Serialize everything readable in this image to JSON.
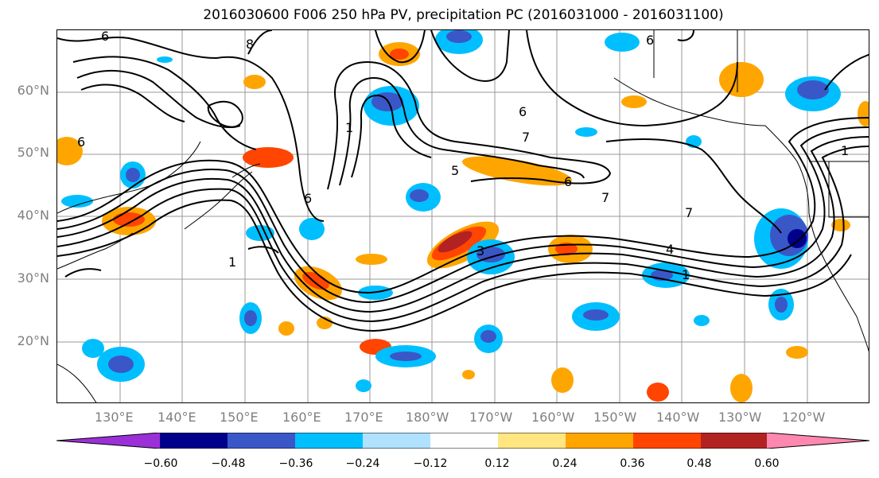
{
  "title": "2016030600 F006 250 hPa PV, precipitation PC (2016031000 - 2016031100)",
  "map": {
    "lat_labels": [
      {
        "label": "60°N",
        "lat": 60
      },
      {
        "label": "50°N",
        "lat": 50
      },
      {
        "label": "40°N",
        "lat": 40
      },
      {
        "label": "30°N",
        "lat": 30
      },
      {
        "label": "20°N",
        "lat": 20
      }
    ],
    "lon_labels": [
      "130°E",
      "140°E",
      "150°E",
      "160°E",
      "170°E",
      "180°W",
      "170°W",
      "160°W",
      "150°W",
      "140°W",
      "130°W",
      "120°W"
    ],
    "contour_labels": [
      "6",
      "8",
      "6",
      "6",
      "5",
      "6",
      "7",
      "7",
      "6",
      "7",
      "4",
      "3",
      "1",
      "1",
      "1",
      "6",
      "1"
    ]
  },
  "colorbar": {
    "ticks": [
      "−0.60",
      "−0.48",
      "−0.36",
      "−0.24",
      "−0.12",
      "0.12",
      "0.24",
      "0.36",
      "0.48",
      "0.60"
    ],
    "colors": [
      "#9b30d8",
      "#00008b",
      "#3a57c8",
      "#00bfff",
      "#b0e2ff",
      "#ffffff",
      "#ffe680",
      "#ffa500",
      "#ff4500",
      "#b22222",
      "#ff88b0"
    ]
  }
}
